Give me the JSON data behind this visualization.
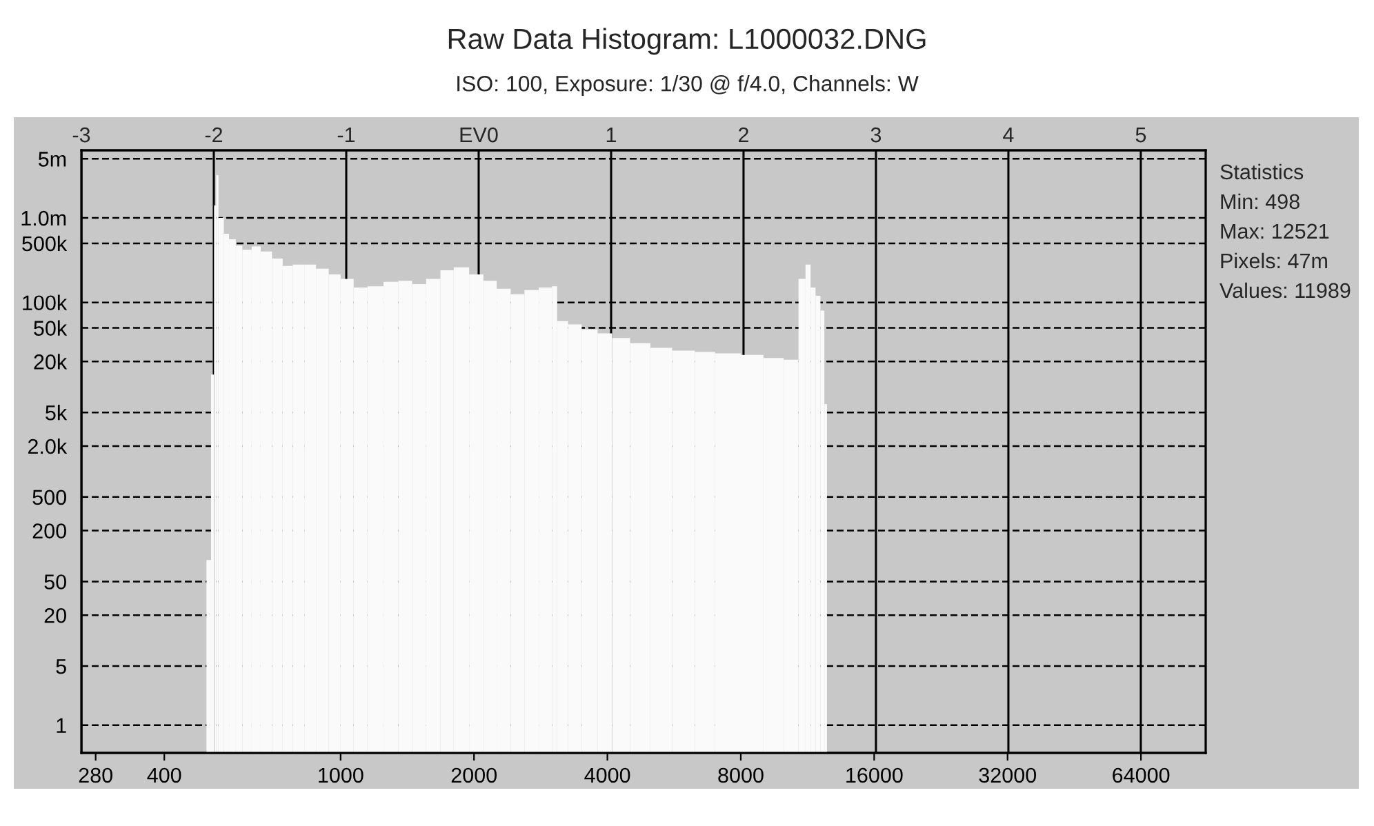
{
  "chart_data": {
    "type": "histogram",
    "title": "Raw Data Histogram: L1000032.DNG",
    "subtitle": "ISO: 100, Exposure: 1/30 @ f/4.0, Channels: W",
    "bins": [
      498,
      510,
      518,
      524,
      530,
      545,
      560,
      580,
      600,
      630,
      660,
      700,
      740,
      780,
      830,
      880,
      940,
      1000,
      1070,
      1150,
      1250,
      1350,
      1450,
      1560,
      1680,
      1800,
      1950,
      2100,
      2250,
      2420,
      2600,
      2800,
      3000,
      3080,
      3260,
      3500,
      3800,
      4100,
      4500,
      5000,
      5600,
      6300,
      7000,
      8000,
      9000,
      10000,
      10800,
      11200,
      11500,
      11800,
      12100,
      12350,
      12521
    ],
    "values": [
      90,
      14000,
      1400000,
      3200000,
      1000000,
      650000,
      560000,
      470000,
      420000,
      460000,
      400000,
      330000,
      270000,
      280000,
      280000,
      250000,
      215000,
      190000,
      150000,
      155000,
      175000,
      180000,
      165000,
      190000,
      240000,
      260000,
      215000,
      180000,
      145000,
      125000,
      140000,
      150000,
      155000,
      60000,
      55000,
      48000,
      43000,
      38000,
      33000,
      29000,
      27000,
      26000,
      25000,
      24000,
      22000,
      21000,
      190000,
      280000,
      150000,
      120000,
      80000,
      6300
    ],
    "color": "#fafafa",
    "log": "xy",
    "xlim": [
      260,
      89600
    ],
    "xticks": [
      280,
      400,
      1000,
      2000,
      4000,
      8000,
      16000,
      32000,
      64000
    ],
    "x2lim": [
      -3.0,
      5.49
    ],
    "x2ticks": [
      -3,
      -2,
      -1,
      {
        "value": 0,
        "label": "EV0"
      },
      1,
      2,
      3,
      4,
      5
    ],
    "ylim": [
      0.47,
      6300000
    ],
    "yticks": [
      1,
      5,
      20,
      50,
      200,
      500,
      {
        "value": 2000,
        "label": "2.0k"
      },
      {
        "value": 5000,
        "label": "5k"
      },
      {
        "value": 20000,
        "label": "20k"
      },
      {
        "value": 50000,
        "label": "50k"
      },
      {
        "value": 100000,
        "label": "100k"
      },
      {
        "value": 500000,
        "label": "500k"
      },
      {
        "value": 1000000,
        "label": "1.0m"
      },
      {
        "value": 5000000,
        "label": "5m"
      }
    ],
    "grid": true,
    "annotations": [
      "Statistics",
      "Min: 498",
      "Max: 12521",
      "Pixels: 47m",
      "Values: 11989"
    ]
  }
}
